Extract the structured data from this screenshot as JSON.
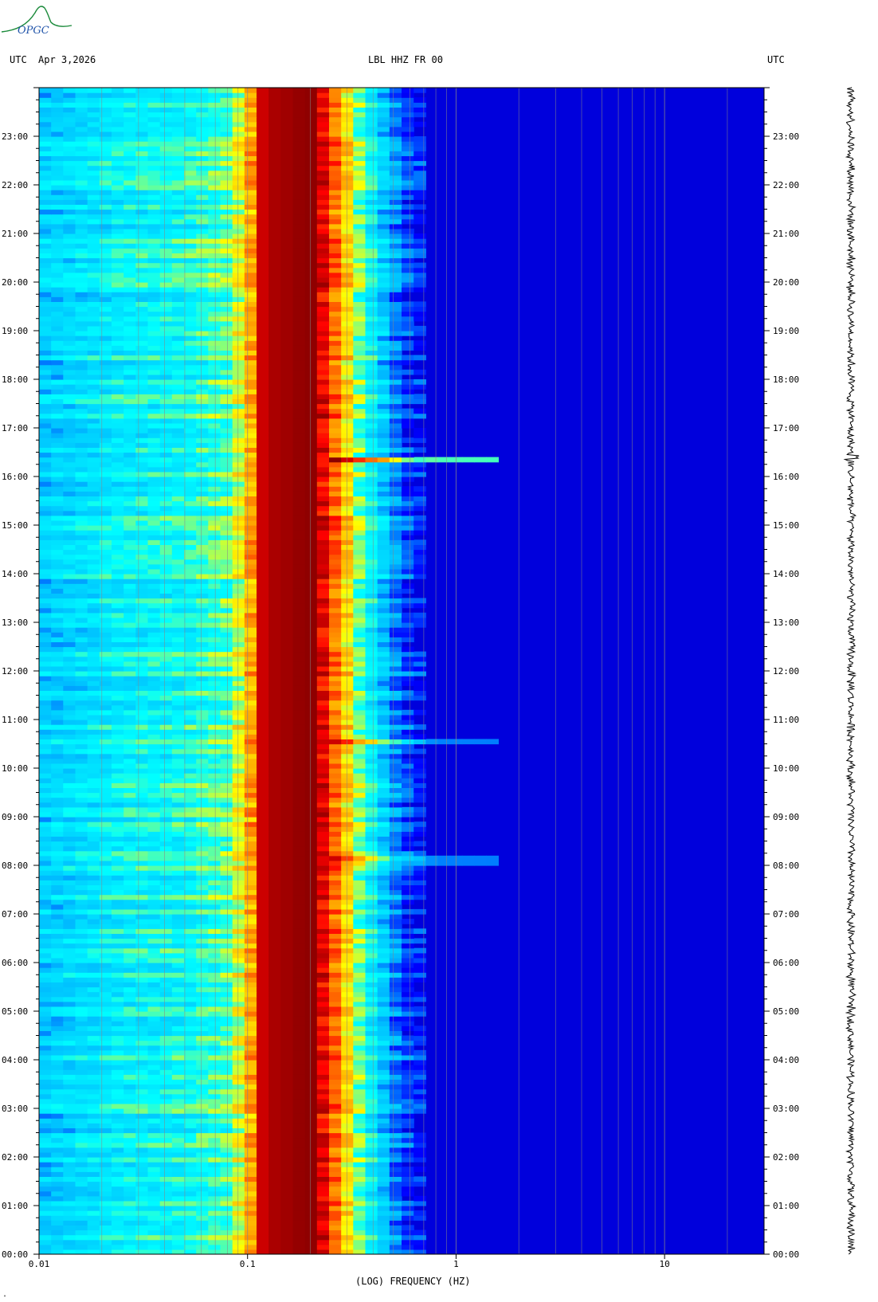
{
  "header": {
    "left_label": "UTC",
    "date": "Apr 3,2026",
    "station": "LBL HHZ FR 00",
    "right_label": "UTC"
  },
  "logo": {
    "text": "OPGC",
    "color": "#1a8a3a"
  },
  "footer_mark": "\"",
  "chart_data": {
    "type": "heatmap",
    "title": "LBL HHZ FR 00",
    "xlabel": "(LOG) FREQUENCY (HZ)",
    "xscale": "log",
    "xlim": [
      0.01,
      30
    ],
    "x_tick_labels": [
      "0.01",
      "0.1",
      "1",
      "10"
    ],
    "x_tick_values": [
      0.01,
      0.1,
      1,
      10
    ],
    "y_tick_labels": [
      "00:00",
      "01:00",
      "02:00",
      "03:00",
      "04:00",
      "05:00",
      "06:00",
      "07:00",
      "08:00",
      "09:00",
      "10:00",
      "11:00",
      "12:00",
      "13:00",
      "14:00",
      "15:00",
      "16:00",
      "17:00",
      "18:00",
      "19:00",
      "20:00",
      "21:00",
      "22:00",
      "23:00"
    ],
    "ylim_hours": [
      0,
      24
    ],
    "colormap": [
      "#00008b",
      "#0000ff",
      "#00bfff",
      "#00ffff",
      "#ffff00",
      "#ff8c00",
      "#ff0000",
      "#8b0000"
    ],
    "spectral_profile": [
      {
        "freq": 0.01,
        "level": 0.32
      },
      {
        "freq": 0.025,
        "level": 0.4
      },
      {
        "freq": 0.05,
        "level": 0.42
      },
      {
        "freq": 0.08,
        "level": 0.48
      },
      {
        "freq": 0.1,
        "level": 0.62
      },
      {
        "freq": 0.12,
        "level": 0.95
      },
      {
        "freq": 0.2,
        "level": 1.0
      },
      {
        "freq": 0.24,
        "level": 0.85
      },
      {
        "freq": 0.28,
        "level": 0.68
      },
      {
        "freq": 0.35,
        "level": 0.48
      },
      {
        "freq": 0.45,
        "level": 0.32
      },
      {
        "freq": 0.55,
        "level": 0.2
      },
      {
        "freq": 0.8,
        "level": 0.12
      },
      {
        "freq": 30,
        "level": 0.1
      }
    ],
    "events_hours": [
      16.35,
      10.55,
      8.05
    ]
  }
}
